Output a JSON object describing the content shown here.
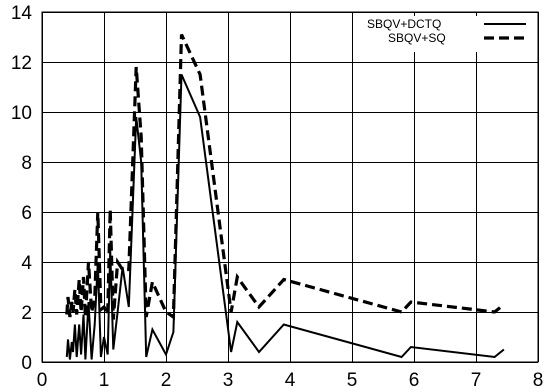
{
  "chart_data": {
    "type": "line",
    "title": "",
    "xlabel": "",
    "ylabel": "",
    "xlim": [
      0,
      8
    ],
    "ylim": [
      0,
      14
    ],
    "x_ticks": [
      "0",
      "1",
      "2",
      "3",
      "4",
      "5",
      "6",
      "7",
      "8"
    ],
    "y_ticks": [
      "0",
      "2",
      "4",
      "6",
      "8",
      "10",
      "12",
      "14"
    ],
    "grid": true,
    "legend_position": "top-right",
    "series": [
      {
        "name": "SBQV+DCTQ",
        "style": "solid",
        "color": "#000000",
        "points": [
          [
            0.4,
            0.2
          ],
          [
            0.42,
            0.9
          ],
          [
            0.45,
            0.1
          ],
          [
            0.48,
            0.8
          ],
          [
            0.5,
            0.4
          ],
          [
            0.53,
            1.5
          ],
          [
            0.56,
            0.2
          ],
          [
            0.6,
            1.5
          ],
          [
            0.63,
            0.3
          ],
          [
            0.67,
            1.9
          ],
          [
            0.7,
            0.1
          ],
          [
            0.75,
            2.4
          ],
          [
            0.8,
            0.1
          ],
          [
            0.85,
            1.5
          ],
          [
            0.9,
            4.0
          ],
          [
            0.95,
            0.2
          ],
          [
            1.0,
            1.0
          ],
          [
            1.06,
            0.3
          ],
          [
            1.1,
            4.5
          ],
          [
            1.15,
            0.5
          ],
          [
            1.22,
            2.0
          ],
          [
            1.3,
            3.8
          ],
          [
            1.4,
            2.2
          ],
          [
            1.52,
            9.8
          ],
          [
            1.6,
            8.0
          ],
          [
            1.68,
            0.2
          ],
          [
            1.78,
            1.3
          ],
          [
            2.0,
            0.3
          ],
          [
            2.12,
            1.2
          ],
          [
            2.25,
            11.5
          ],
          [
            2.55,
            9.8
          ],
          [
            3.05,
            0.4
          ],
          [
            3.15,
            1.6
          ],
          [
            3.5,
            0.4
          ],
          [
            3.9,
            1.5
          ],
          [
            5.8,
            0.2
          ],
          [
            5.95,
            0.6
          ],
          [
            7.3,
            0.2
          ],
          [
            7.45,
            0.5
          ]
        ]
      },
      {
        "name": "SBQV+SQ",
        "style": "dashed",
        "color": "#000000",
        "points": [
          [
            0.4,
            1.9
          ],
          [
            0.42,
            2.6
          ],
          [
            0.45,
            1.8
          ],
          [
            0.48,
            2.4
          ],
          [
            0.5,
            2.0
          ],
          [
            0.53,
            2.9
          ],
          [
            0.56,
            1.9
          ],
          [
            0.6,
            3.3
          ],
          [
            0.63,
            2.0
          ],
          [
            0.67,
            3.4
          ],
          [
            0.7,
            1.8
          ],
          [
            0.75,
            4.0
          ],
          [
            0.8,
            2.0
          ],
          [
            0.85,
            2.5
          ],
          [
            0.9,
            6.0
          ],
          [
            0.95,
            2.1
          ],
          [
            1.0,
            2.2
          ],
          [
            1.06,
            1.9
          ],
          [
            1.1,
            6.1
          ],
          [
            1.15,
            1.7
          ],
          [
            1.22,
            4.0
          ],
          [
            1.3,
            3.7
          ],
          [
            1.4,
            3.7
          ],
          [
            1.52,
            11.8
          ],
          [
            1.6,
            9.0
          ],
          [
            1.68,
            1.8
          ],
          [
            1.78,
            3.2
          ],
          [
            2.0,
            2.0
          ],
          [
            2.12,
            1.8
          ],
          [
            2.25,
            13.1
          ],
          [
            2.55,
            11.5
          ],
          [
            3.05,
            2.0
          ],
          [
            3.15,
            3.4
          ],
          [
            3.5,
            2.2
          ],
          [
            3.9,
            3.3
          ],
          [
            5.8,
            2.0
          ],
          [
            5.95,
            2.4
          ],
          [
            7.3,
            2.0
          ],
          [
            7.45,
            2.3
          ]
        ]
      }
    ]
  }
}
